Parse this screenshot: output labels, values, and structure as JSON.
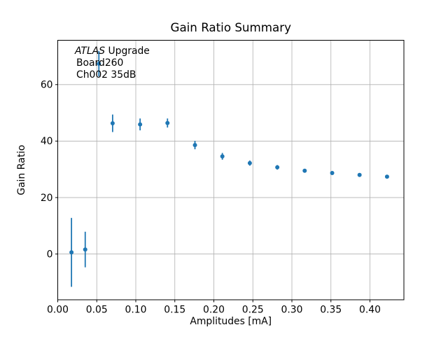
{
  "chart_data": {
    "type": "scatter",
    "title": "Gain Ratio Summary",
    "xlabel": "Amplitudes [mA]",
    "ylabel": "Gain Ratio",
    "annotation": {
      "line1_italic": "ATLAS",
      "line1_rest": " Upgrade",
      "line2": "Board260",
      "line3": "Ch002 35dB"
    },
    "x": [
      0.0176,
      0.0352,
      0.0527,
      0.0703,
      0.1055,
      0.1406,
      0.1758,
      0.2109,
      0.2461,
      0.2813,
      0.3164,
      0.3516,
      0.3867,
      0.4219
    ],
    "y": [
      0.6,
      1.6,
      67.4,
      46.3,
      45.9,
      46.4,
      38.6,
      34.6,
      32.2,
      30.7,
      29.5,
      28.7,
      28.0,
      27.4
    ],
    "yerr": [
      12.2,
      6.3,
      4.5,
      3.1,
      2.1,
      1.6,
      1.5,
      1.2,
      0.9,
      0.8,
      0.6,
      0.5,
      0.5,
      0.4
    ],
    "xlim": [
      0.0,
      0.4435
    ],
    "ylim": [
      -16.2,
      75.7
    ],
    "xticks": [
      0.0,
      0.05,
      0.1,
      0.15,
      0.2,
      0.25,
      0.3,
      0.35,
      0.4
    ],
    "xtick_labels": [
      "0.00",
      "0.05",
      "0.10",
      "0.15",
      "0.20",
      "0.25",
      "0.30",
      "0.35",
      "0.40"
    ],
    "yticks": [
      0,
      20,
      40,
      60
    ],
    "ytick_labels": [
      "0",
      "20",
      "40",
      "60"
    ],
    "grid": true,
    "legend_position": "none",
    "marker": "o",
    "error_caps": false,
    "marker_color": "#1f77b4",
    "grid_color": "#b0b0b0",
    "spine_color": "#000000",
    "background_color": "#ffffff"
  }
}
